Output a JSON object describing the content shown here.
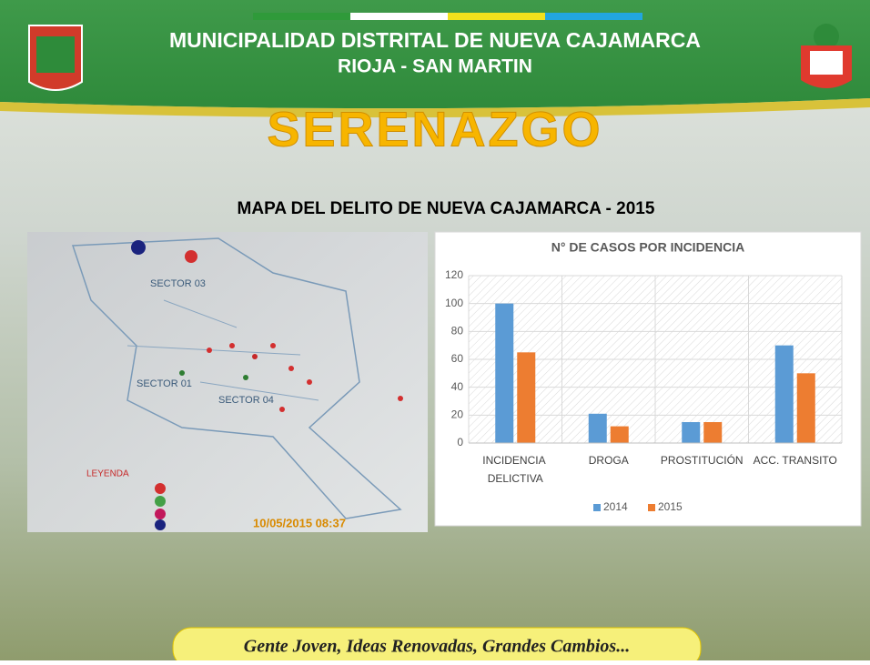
{
  "header": {
    "title": "MUNICIPALIDAD DISTRITAL DE NUEVA CAJAMARCA",
    "subtitle": "RIOJA - SAN MARTIN",
    "banner": "SERENAZGO"
  },
  "section_title": "MAPA DEL DELITO DE NUEVA CAJAMARCA - 2015",
  "map": {
    "labels": [
      "SECTOR 03",
      "SECTOR 01",
      "SECTOR 04",
      "LEYENDA"
    ],
    "timestamp": "10/05/2015 08:37"
  },
  "footer": "Gente Joven, Ideas Renovadas, Grandes Cambios...",
  "chart_data": {
    "type": "bar",
    "title": "N° DE CASOS POR INCIDENCIA",
    "categories": [
      "INCIDENCIA DELICTIVA",
      "DROGA",
      "PROSTITUCIÓN",
      "ACC. TRANSITO"
    ],
    "series": [
      {
        "name": "2014",
        "color": "#5b9bd5",
        "values": [
          100,
          21,
          15,
          70
        ]
      },
      {
        "name": "2015",
        "color": "#ed7d31",
        "values": [
          65,
          12,
          15,
          50
        ]
      }
    ],
    "ylim": [
      0,
      120
    ],
    "yticks": [
      0,
      20,
      40,
      60,
      80,
      100,
      120
    ],
    "grid": true,
    "legend": "bottom"
  }
}
